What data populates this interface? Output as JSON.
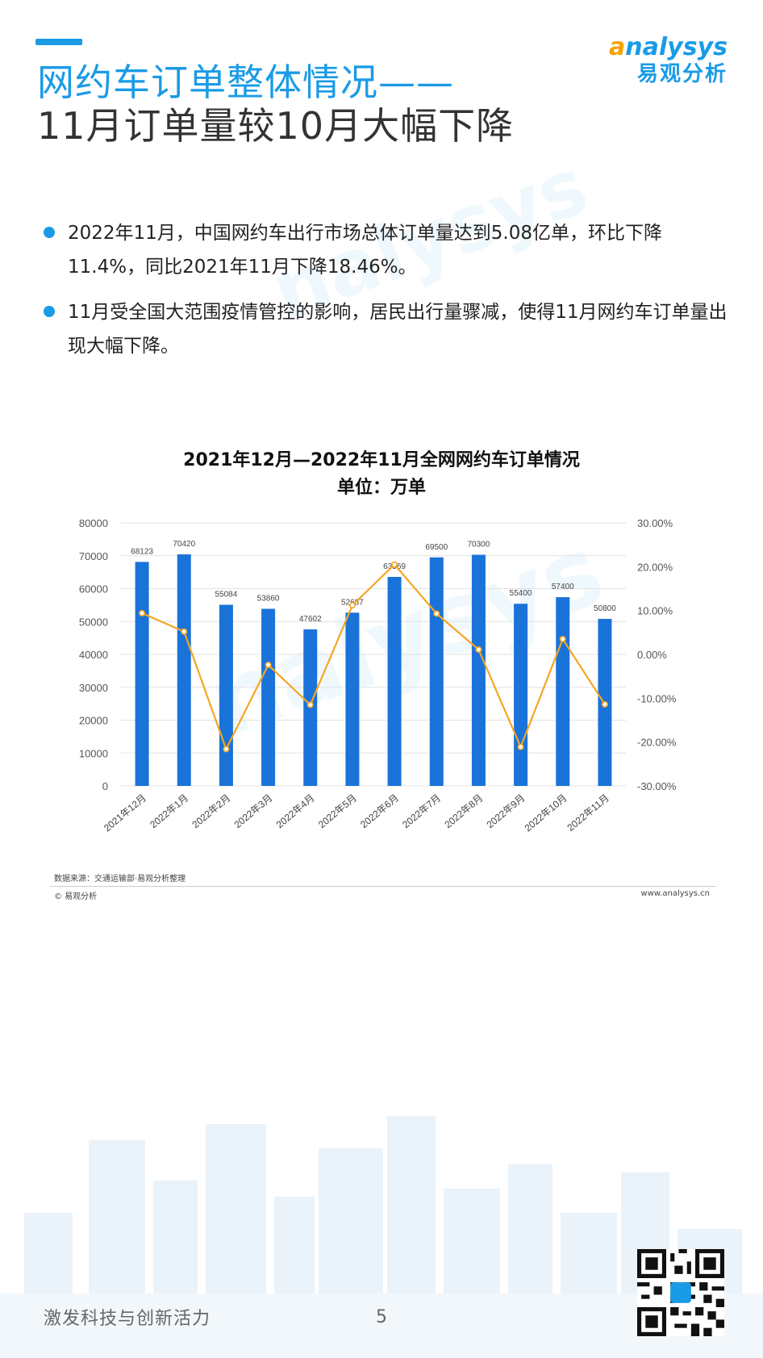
{
  "header": {
    "title_line1": "网约车订单整体情况——",
    "title_line2": "11月订单量较10月大幅下降",
    "logo_en_a": "a",
    "logo_en_rest": "nalysys",
    "logo_cn": "易观分析"
  },
  "bullets": [
    "2022年11月，中国网约车出行市场总体订单量达到5.08亿单，环比下降11.4%，同比2021年11月下降18.46%。",
    "11月受全国大范围疫情管控的影响，居民出行量骤减，使得11月网约车订单量出现大幅下降。"
  ],
  "chart_data": {
    "type": "bar",
    "title": "2021年12月—2022年11月全网网约车订单情况",
    "subtitle": "单位：万单",
    "categories": [
      "2021年12月",
      "2022年1月",
      "2022年2月",
      "2022年3月",
      "2022年4月",
      "2022年5月",
      "2022年6月",
      "2022年7月",
      "2022年8月",
      "2022年9月",
      "2022年10月",
      "2022年11月"
    ],
    "series": [
      {
        "type": "bar",
        "axis": "left",
        "values": [
          68123,
          70420,
          55084,
          53860,
          47602,
          52687,
          63569,
          69500,
          70300,
          55400,
          57400,
          50800
        ],
        "color": "#1a73d9"
      },
      {
        "type": "line",
        "axis": "right",
        "values": [
          9.4,
          5.2,
          -21.6,
          -2.4,
          -11.5,
          11.2,
          20.5,
          9.3,
          1.1,
          -21.1,
          3.5,
          -11.4
        ],
        "color": "#f5a623"
      }
    ],
    "ylim_left": [
      0,
      80000
    ],
    "yticks_left": [
      "80000",
      "70000",
      "60000",
      "50000",
      "40000",
      "30000",
      "20000",
      "10000",
      "0"
    ],
    "ylim_right": [
      -30,
      30
    ],
    "yticks_right": [
      "30.00%",
      "20.00%",
      "10.00%",
      "0.00%",
      "-10.00%",
      "-20.00%",
      "-30.00%"
    ],
    "grid": true,
    "legend": "none"
  },
  "footer": {
    "source": "数据来源：交通运输部·易观分析整理",
    "copyright": "© 易观分析",
    "site": "www.analysys.cn",
    "slogan": "激发科技与创新活力",
    "page": "5"
  }
}
